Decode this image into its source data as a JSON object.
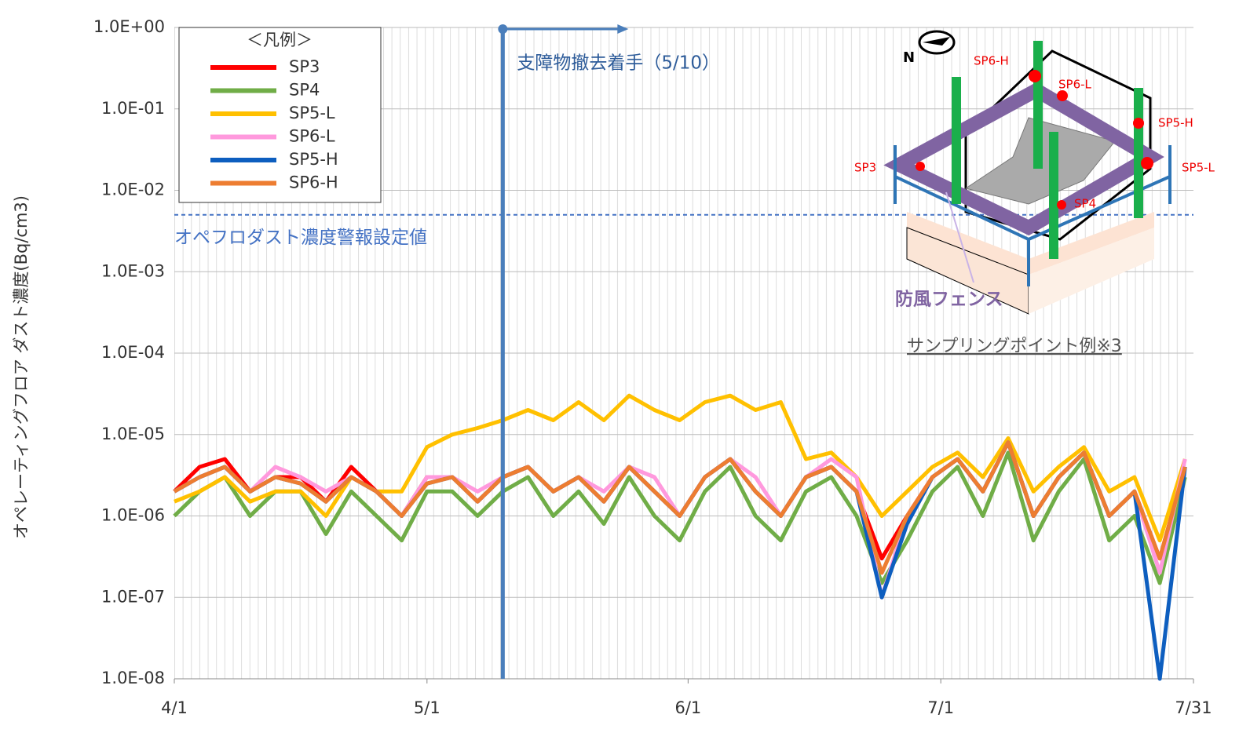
{
  "chart_data": {
    "type": "line",
    "log_scale": true,
    "grid": true,
    "y_label": "オペレーティングフロア ダスト濃度(Bq/cm3)",
    "legend_title": "＜凡例＞",
    "legend_position": "upper left",
    "ylim": [
      1e-08,
      1
    ],
    "yticks": [
      {
        "value": 1e-08,
        "label": "1.0E-08"
      },
      {
        "value": 1e-07,
        "label": "1.0E-07"
      },
      {
        "value": 1e-06,
        "label": "1.0E-06"
      },
      {
        "value": 1e-05,
        "label": "1.0E-05"
      },
      {
        "value": 0.0001,
        "label": "1.0E-04"
      },
      {
        "value": 0.001,
        "label": "1.0E-03"
      },
      {
        "value": 0.01,
        "label": "1.0E-02"
      },
      {
        "value": 0.1,
        "label": "1.0E-01"
      },
      {
        "value": 1,
        "label": "1.0E+00"
      }
    ],
    "xlim": [
      "4/1",
      "7/31"
    ],
    "xticks": [
      "4/1",
      "5/1",
      "6/1",
      "7/1",
      "7/31"
    ],
    "x": [
      "4/1",
      "4/4",
      "4/7",
      "4/10",
      "4/13",
      "4/16",
      "4/19",
      "4/22",
      "4/25",
      "4/28",
      "5/1",
      "5/4",
      "5/7",
      "5/10",
      "5/13",
      "5/16",
      "5/19",
      "5/22",
      "5/25",
      "5/28",
      "5/31",
      "6/3",
      "6/6",
      "6/9",
      "6/12",
      "6/15",
      "6/18",
      "6/21",
      "6/24",
      "6/27",
      "6/30",
      "7/3",
      "7/6",
      "7/9",
      "7/12",
      "7/15",
      "7/18",
      "7/21",
      "7/24",
      "7/27",
      "7/30"
    ],
    "threshold": {
      "value": 0.005,
      "label": "オペフロダスト濃度警報設定値",
      "color": "#4472c4"
    },
    "event": {
      "x": "5/10",
      "label": "支障物撤去着手（5/10）",
      "color": "#4a7ebb"
    },
    "series": [
      {
        "name": "SP3",
        "color": "#ff0000",
        "values": [
          2e-06,
          4e-06,
          5e-06,
          2e-06,
          3e-06,
          3e-06,
          1.5e-06,
          4e-06,
          2e-06,
          1e-06,
          3e-06,
          3e-06,
          1.5e-06,
          3e-06,
          4e-06,
          2e-06,
          3e-06,
          1.5e-06,
          4e-06,
          2e-06,
          1e-06,
          3e-06,
          5e-06,
          2e-06,
          1e-06,
          3e-06,
          4e-06,
          2e-06,
          3e-07,
          1e-06,
          3e-06,
          5e-06,
          2e-06,
          8e-06,
          1e-06,
          3e-06,
          6e-06,
          1e-06,
          2e-06,
          3e-07,
          4e-06
        ]
      },
      {
        "name": "SP4",
        "color": "#70ad47",
        "values": [
          1e-06,
          2e-06,
          3e-06,
          1e-06,
          2e-06,
          2e-06,
          6e-07,
          2e-06,
          1e-06,
          5e-07,
          2e-06,
          2e-06,
          1e-06,
          2e-06,
          3e-06,
          1e-06,
          2e-06,
          8e-07,
          3e-06,
          1e-06,
          5e-07,
          2e-06,
          4e-06,
          1e-06,
          5e-07,
          2e-06,
          3e-06,
          1e-06,
          1.5e-07,
          5e-07,
          2e-06,
          4e-06,
          1e-06,
          6e-06,
          5e-07,
          2e-06,
          5e-06,
          5e-07,
          1e-06,
          1.5e-07,
          3e-06
        ]
      },
      {
        "name": "SP5-L",
        "color": "#ffc000",
        "values": [
          1.5e-06,
          2e-06,
          3e-06,
          1.5e-06,
          2e-06,
          2e-06,
          1e-06,
          3e-06,
          2e-06,
          2e-06,
          7e-06,
          1e-05,
          1.2e-05,
          1.5e-05,
          2e-05,
          1.5e-05,
          2.5e-05,
          1.5e-05,
          3e-05,
          2e-05,
          1.5e-05,
          2.5e-05,
          3e-05,
          2e-05,
          2.5e-05,
          5e-06,
          6e-06,
          3e-06,
          1e-06,
          2e-06,
          4e-06,
          6e-06,
          3e-06,
          9e-06,
          2e-06,
          4e-06,
          7e-06,
          2e-06,
          3e-06,
          5e-07,
          5e-06
        ]
      },
      {
        "name": "SP6-L",
        "color": "#ff99dd",
        "values": [
          2e-06,
          3e-06,
          4e-06,
          2e-06,
          4e-06,
          3e-06,
          2e-06,
          3e-06,
          2e-06,
          1e-06,
          3e-06,
          3e-06,
          2e-06,
          3e-06,
          4e-06,
          2e-06,
          3e-06,
          2e-06,
          4e-06,
          3e-06,
          1e-06,
          3e-06,
          5e-06,
          3e-06,
          1e-06,
          3e-06,
          5e-06,
          3e-06,
          1e-07,
          1e-06,
          3e-06,
          5e-06,
          2e-06,
          8e-06,
          1e-06,
          3e-06,
          6e-06,
          1e-06,
          2e-06,
          2e-07,
          5e-06
        ]
      },
      {
        "name": "SP5-H",
        "color": "#0d5ebf",
        "values": [
          2e-06,
          3e-06,
          4e-06,
          2e-06,
          3e-06,
          2.5e-06,
          1.5e-06,
          3e-06,
          2e-06,
          1e-06,
          2.5e-06,
          3e-06,
          1.5e-06,
          3e-06,
          4e-06,
          2e-06,
          3e-06,
          1.5e-06,
          4e-06,
          2e-06,
          1e-06,
          3e-06,
          5e-06,
          2e-06,
          1e-06,
          3e-06,
          4e-06,
          2e-06,
          1e-07,
          8e-07,
          3e-06,
          5e-06,
          2e-06,
          8e-06,
          1e-06,
          3e-06,
          6e-06,
          1e-06,
          2e-06,
          1e-08,
          4e-06
        ]
      },
      {
        "name": "SP6-H",
        "color": "#ed7d31",
        "values": [
          2e-06,
          3e-06,
          4e-06,
          2e-06,
          3e-06,
          2.5e-06,
          1.5e-06,
          3e-06,
          2e-06,
          1e-06,
          2.5e-06,
          3e-06,
          1.5e-06,
          3e-06,
          4e-06,
          2e-06,
          3e-06,
          1.5e-06,
          4e-06,
          2e-06,
          1e-06,
          3e-06,
          5e-06,
          2e-06,
          1e-06,
          3e-06,
          4e-06,
          2e-06,
          2e-07,
          1e-06,
          3e-06,
          5e-06,
          2e-06,
          8e-06,
          1e-06,
          3e-06,
          6e-06,
          1e-06,
          2e-06,
          3e-07,
          4e-06
        ]
      }
    ]
  },
  "inset": {
    "compass": "N",
    "points": [
      "SP6-H",
      "SP6-L",
      "SP5-H",
      "SP3",
      "SP5-L",
      "SP4"
    ],
    "fence_label": "防風フェンス",
    "caption": "サンプリングポイント例※3"
  }
}
